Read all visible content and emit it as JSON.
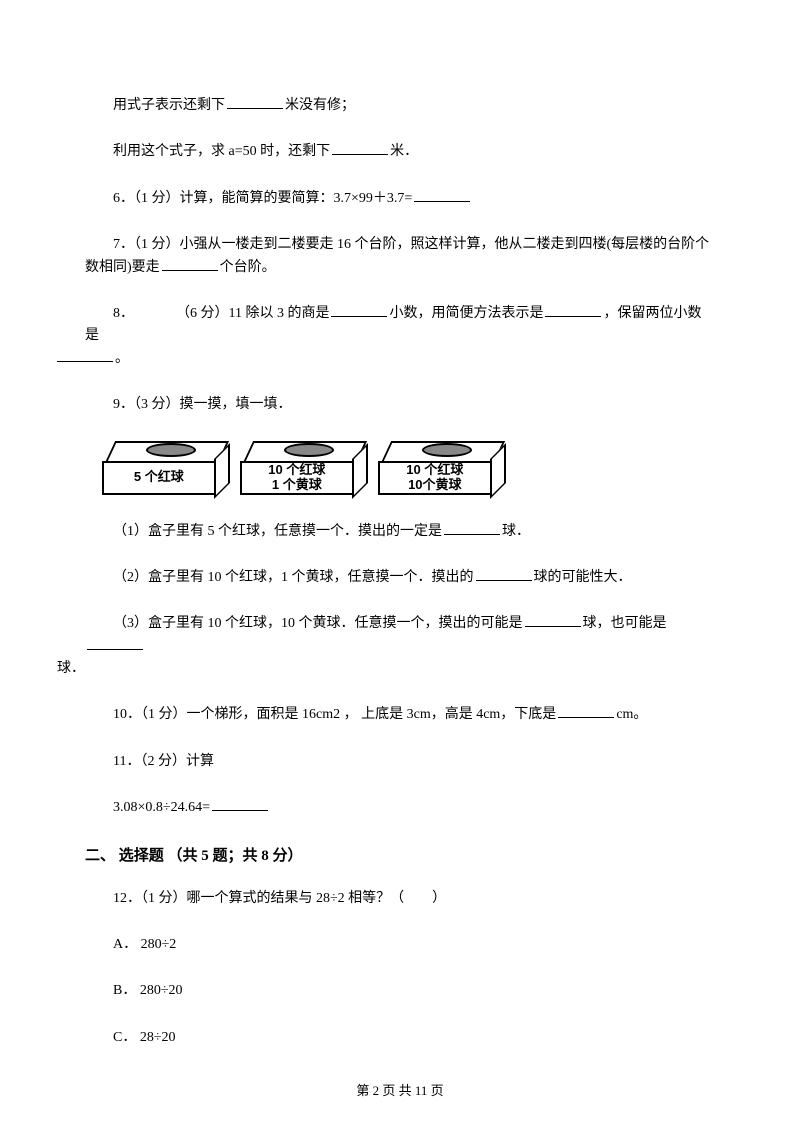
{
  "q_prefix_1": "用式子表示还剩下",
  "q_prefix_1b": "米没有修；",
  "q_prefix_2a": "利用这个式子，求 a=50 时，还剩下",
  "q_prefix_2b": "米．",
  "q6": "6．（1 分）计算，能简算的要简算：3.7×99＋3.7=",
  "q7a": "7．（1 分）小强从一楼走到二楼要走 16 个台阶，照这样计算，他从二楼走到四楼(每层楼的台阶个数相同)要走",
  "q7b": "个台阶。",
  "q8a": "8．   （6 分）11 除以 3 的商是",
  "q8b": "小数，用简便方法表示是",
  "q8c": "，保留两位小数是",
  "q8d": "。",
  "q9": "9．（3 分）摸一摸，填一填．",
  "box1_l1": "5 个红球",
  "box2_l1": "10 个红球",
  "box2_l2": "1 个黄球",
  "box3_l1": "10 个红球",
  "box3_l2": "10个黄球",
  "q9_1a": "（1）盒子里有 5 个红球，任意摸一个．摸出的一定是",
  "q9_1b": "球．",
  "q9_2a": "（2）盒子里有 10 个红球，1 个黄球，任意摸一个．摸出的",
  "q9_2b": "球的可能性大．",
  "q9_3a": "（3）盒子里有 10 个红球，10 个黄球．任意摸一个，摸出的可能是",
  "q9_3b": "球，也可能是",
  "q9_3c": "球．",
  "q10a": "10．（1 分）一个梯形，面积是 16cm2 ， 上底是 3cm，高是 4cm，下底是",
  "q10b": "cm。",
  "q11": "11．（2 分）计算",
  "q11_expr": "3.08×0.8÷24.64=",
  "section2": "二、 选择题 （共 5 题；共 8 分）",
  "q12": "12．（1 分）哪一个算式的结果与 28÷2 相等？（  ）",
  "q12_a": "A． 280÷2",
  "q12_b": "B． 280÷20",
  "q12_c": "C． 28÷20",
  "footer": "第 2 页 共 11 页"
}
